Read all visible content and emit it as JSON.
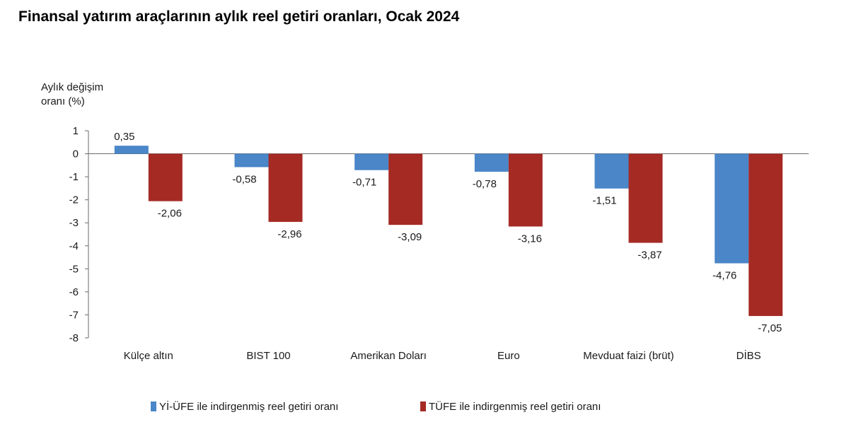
{
  "chart_data": {
    "type": "bar",
    "title": "Finansal yatırım araçlarının aylık reel getiri oranları, Ocak 2024",
    "ylabel": [
      "Aylık değişim",
      "oranı (%)"
    ],
    "xlabel": "",
    "ylim": [
      -8,
      1
    ],
    "yticks": [
      "1",
      "0",
      "-1",
      "-2",
      "-3",
      "-4",
      "-5",
      "-6",
      "-7",
      "-8"
    ],
    "grid": false,
    "legend_position": "bottom",
    "categories": [
      "Külçe altın",
      "BIST 100",
      "Amerikan Doları",
      "Euro",
      "Mevduat faizi (brüt)",
      "DİBS"
    ],
    "series": [
      {
        "name": "Yİ-ÜFE ile indirgenmiş reel getiri oranı",
        "color": "#4a86c8",
        "values": [
          0.35,
          -0.58,
          -0.71,
          -0.78,
          -1.51,
          -4.76
        ],
        "labels": [
          "0,35",
          "-0,58",
          "-0,71",
          "-0,78",
          "-1,51",
          "-4,76"
        ]
      },
      {
        "name": "TÜFE ile indirgenmiş reel getiri oranı",
        "color": "#a52a24",
        "values": [
          -2.06,
          -2.96,
          -3.09,
          -3.16,
          -3.87,
          -7.05
        ],
        "labels": [
          "-2,06",
          "-2,96",
          "-3,09",
          "-3,16",
          "-3,87",
          "-7,05"
        ]
      }
    ]
  }
}
